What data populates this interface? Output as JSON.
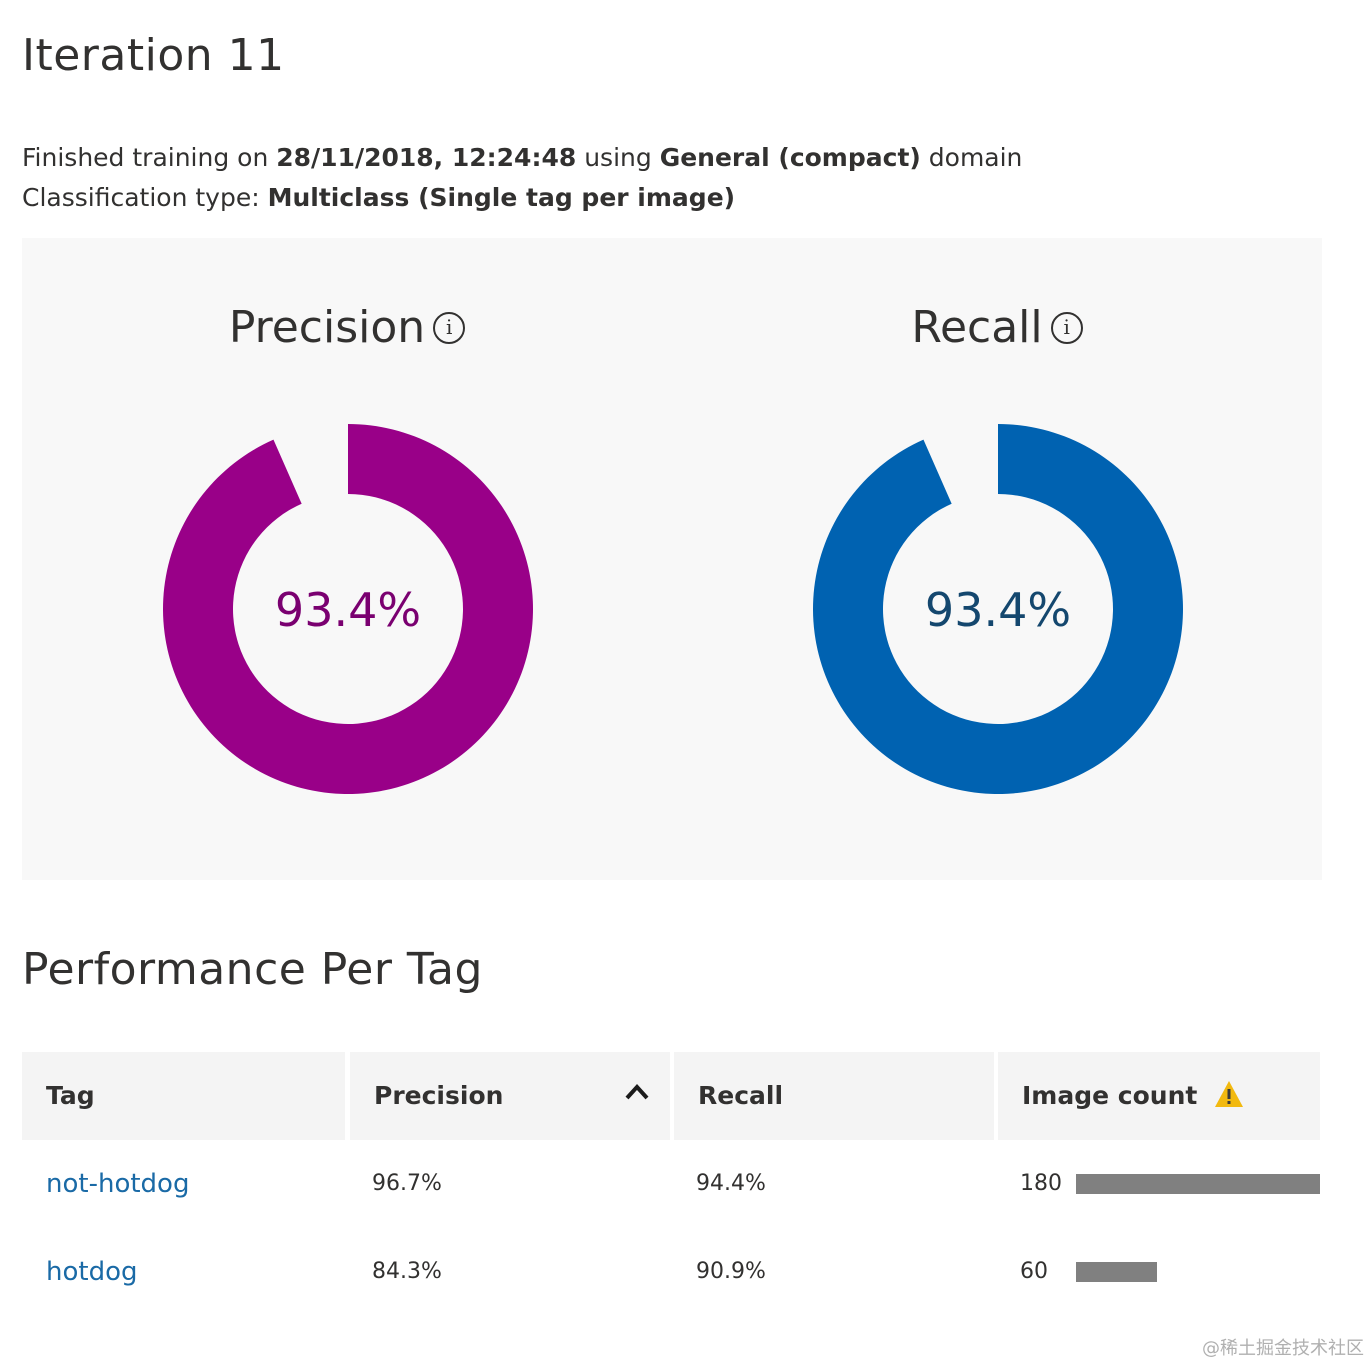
{
  "page": {
    "title": "Iteration 11"
  },
  "training_info": {
    "prefix": "Finished training on ",
    "date": "28/11/2018, 12:24:48",
    "middle": " using ",
    "domain": "General (compact)",
    "suffix": " domain",
    "classification_label": "Classification type: ",
    "classification_value": "Multiclass (Single tag per image)"
  },
  "metrics": {
    "precision": {
      "label": "Precision",
      "value_text": "93.4%",
      "value": 0.934,
      "color": "#990088",
      "text_color": "#7a0070"
    },
    "recall": {
      "label": "Recall",
      "value_text": "93.4%",
      "value": 0.934,
      "color": "#0062b1",
      "text_color": "#14476e"
    },
    "info_glyph": "i"
  },
  "per_tag": {
    "title": "Performance Per Tag",
    "columns": {
      "tag": "Tag",
      "precision": "Precision",
      "recall": "Recall",
      "image_count": "Image count"
    },
    "sort_icon": "chevron-up-icon",
    "warning_icon": "warning-icon",
    "warning_color": "#f2b90f",
    "bar_color": "#808080",
    "max_count": 180,
    "rows": [
      {
        "tag": "not-hotdog",
        "precision": "96.7%",
        "recall": "94.4%",
        "image_count": "180",
        "count_value": 180
      },
      {
        "tag": "hotdog",
        "precision": "84.3%",
        "recall": "90.9%",
        "image_count": "60",
        "count_value": 60
      }
    ]
  },
  "watermark": "@稀土掘金技术社区"
}
